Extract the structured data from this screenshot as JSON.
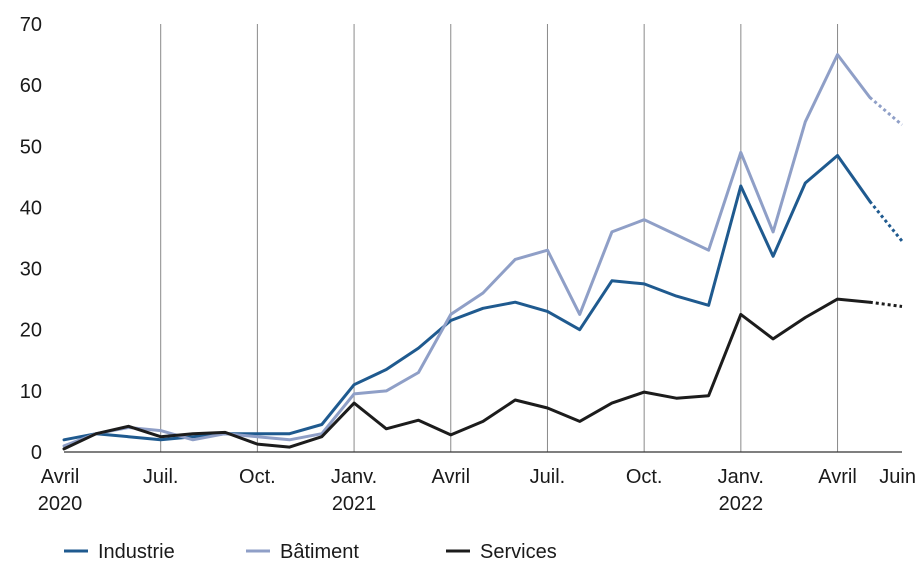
{
  "chart_data": {
    "type": "line",
    "title": "",
    "xlabel": "",
    "ylabel": "",
    "ylim": [
      0,
      70
    ],
    "yticks": [
      0,
      10,
      20,
      30,
      40,
      50,
      60,
      70
    ],
    "grid": "vertical",
    "legend_position": "bottom-left",
    "x": [
      "2020-04",
      "2020-05",
      "2020-06",
      "2020-07",
      "2020-08",
      "2020-09",
      "2020-10",
      "2020-11",
      "2020-12",
      "2021-01",
      "2021-02",
      "2021-03",
      "2021-04",
      "2021-05",
      "2021-06",
      "2021-07",
      "2021-08",
      "2021-09",
      "2021-10",
      "2021-11",
      "2021-12",
      "2022-01",
      "2022-02",
      "2022-03",
      "2022-04",
      "2022-05",
      "2022-06"
    ],
    "xtick_labels": [
      {
        "x": "2020-04",
        "line1": "Avril",
        "line2": "2020"
      },
      {
        "x": "2020-07",
        "line1": "Juil.",
        "line2": ""
      },
      {
        "x": "2020-10",
        "line1": "Oct.",
        "line2": ""
      },
      {
        "x": "2021-01",
        "line1": "Janv.",
        "line2": "2021"
      },
      {
        "x": "2021-04",
        "line1": "Avril",
        "line2": ""
      },
      {
        "x": "2021-07",
        "line1": "Juil.",
        "line2": ""
      },
      {
        "x": "2021-10",
        "line1": "Oct.",
        "line2": ""
      },
      {
        "x": "2022-01",
        "line1": "Janv.",
        "line2": "2022"
      },
      {
        "x": "2022-04",
        "line1": "Avril",
        "line2": ""
      },
      {
        "x": "2022-06",
        "line1": "Juin",
        "line2": ""
      }
    ],
    "gridline_x": [
      "2020-07",
      "2020-10",
      "2021-01",
      "2021-04",
      "2021-07",
      "2021-10",
      "2022-01",
      "2022-04"
    ],
    "projection_from": "2022-05",
    "series": [
      {
        "name": "Industrie",
        "color": "#1f5a8f",
        "values": [
          2,
          3,
          2.5,
          2,
          2.5,
          3,
          3,
          3,
          4.5,
          11,
          13.5,
          17,
          21.5,
          23.5,
          24.5,
          23,
          20,
          28,
          27.5,
          25.5,
          24,
          43.5,
          32,
          44,
          48.5,
          41,
          34.5
        ]
      },
      {
        "name": "Bâtiment",
        "color": "#8f9fc7",
        "values": [
          1,
          3,
          4,
          3.5,
          2,
          3,
          2.5,
          2,
          3,
          9.5,
          10,
          13,
          22.5,
          26,
          31.5,
          33,
          22.5,
          36,
          38,
          35.5,
          33,
          49,
          36,
          54,
          65,
          58,
          53.5
        ]
      },
      {
        "name": "Services",
        "color": "#1c1c1c",
        "values": [
          0.5,
          3,
          4.2,
          2.5,
          3,
          3.2,
          1.3,
          0.8,
          2.5,
          8,
          3.8,
          5.2,
          2.8,
          5,
          8.5,
          7.2,
          5,
          8,
          9.8,
          8.8,
          9.2,
          22.5,
          18.5,
          22,
          25,
          24.5,
          23.8
        ]
      }
    ]
  }
}
